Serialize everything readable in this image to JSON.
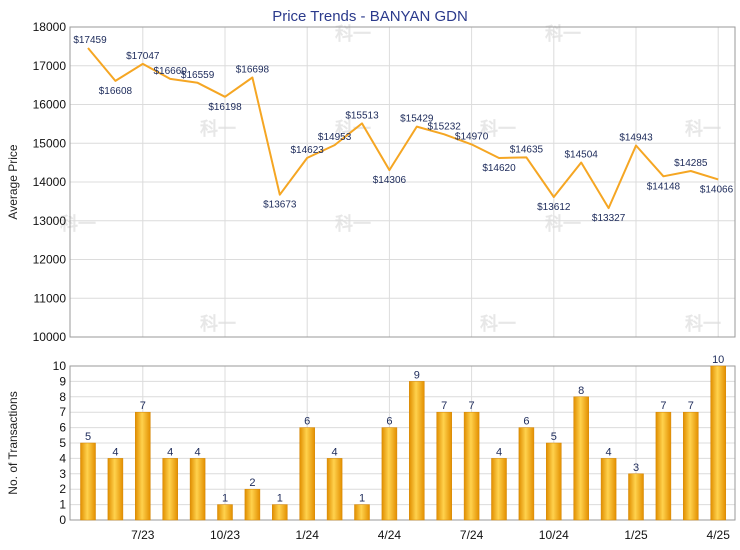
{
  "chart_data": [
    {
      "type": "line",
      "title": "Price Trends - BANYAN GDN",
      "ylabel": "Average Price",
      "ylim": [
        10000,
        18000
      ],
      "yticks": [
        10000,
        11000,
        12000,
        13000,
        14000,
        15000,
        16000,
        17000,
        18000
      ],
      "line_color": "#f5a623",
      "grid": true,
      "series": [
        {
          "values": [
            17459,
            16608,
            17047,
            16660,
            16559,
            16198,
            16698,
            13673,
            14623,
            14953,
            15513,
            14306,
            15429,
            15232,
            14970,
            14620,
            14635,
            13612,
            14504,
            13327,
            14943,
            14148,
            14285,
            14066
          ],
          "labels": [
            "$17459",
            "$16608",
            "$17047",
            "$16660",
            "$16559",
            "$16198",
            "$16698",
            "$13673",
            "$14623",
            "$14953",
            "$15513",
            "$14306",
            "$15429",
            "$15232",
            "$14970",
            "$14620",
            "$14635",
            "$13612",
            "$14504",
            "$13327",
            "$14943",
            "$14148",
            "$14285",
            "$14066"
          ]
        }
      ]
    },
    {
      "type": "bar",
      "ylabel": "No. of Transactions",
      "ylim": [
        0,
        10
      ],
      "yticks": [
        0,
        1,
        2,
        3,
        4,
        5,
        6,
        7,
        8,
        9,
        10
      ],
      "bar_color": "#f5a623",
      "grid": true,
      "values": [
        5,
        4,
        7,
        4,
        4,
        1,
        2,
        1,
        6,
        4,
        1,
        6,
        9,
        7,
        7,
        4,
        6,
        5,
        8,
        4,
        3,
        7,
        7,
        10
      ],
      "xticks": [
        {
          "index": 2,
          "label": "7/23"
        },
        {
          "index": 5,
          "label": "10/23"
        },
        {
          "index": 8,
          "label": "1/24"
        },
        {
          "index": 11,
          "label": "4/24"
        },
        {
          "index": 14,
          "label": "7/24"
        },
        {
          "index": 17,
          "label": "10/24"
        },
        {
          "index": 20,
          "label": "1/25"
        },
        {
          "index": 23,
          "label": "4/25"
        }
      ]
    }
  ],
  "watermark": "科一"
}
